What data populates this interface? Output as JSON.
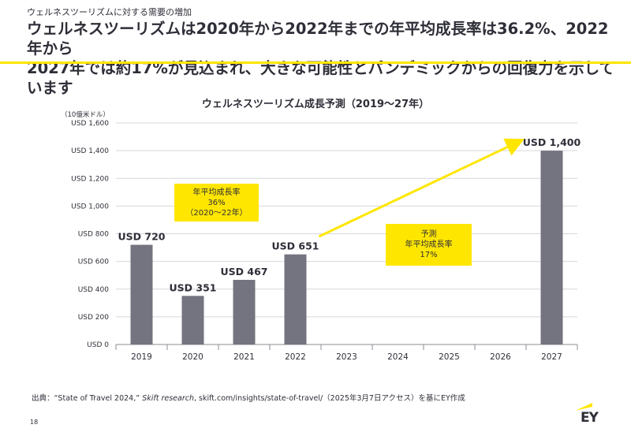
{
  "header": {
    "topic": "ウェルネスツーリズムに対する需要の増加",
    "headline_line1": "ウェルネスツーリズムは2020年から2022年までの年平均成長率は36.2%、2022年から",
    "headline_line2": "2027年では約17%が見込まれ、大きな可能性とパンデミックからの回復力を示しています"
  },
  "colors": {
    "accent": "#ffe600",
    "bar": "#747480",
    "text": "#2e2e38",
    "grid": "#d7d7dc"
  },
  "chart_data": {
    "type": "bar",
    "title": "ウェルネスツーリズム成長予測（2019～27年）",
    "unit_label": "（10億米ドル）",
    "categories": [
      "2019",
      "2020",
      "2021",
      "2022",
      "2023",
      "2024",
      "2025",
      "2026",
      "2027"
    ],
    "values": [
      720,
      351,
      467,
      651,
      null,
      null,
      null,
      null,
      1400
    ],
    "data_labels": [
      "USD 720",
      "USD 351",
      "USD 467",
      "USD 651",
      "",
      "",
      "",
      "",
      "USD 1,400"
    ],
    "ylim": [
      0,
      1600
    ],
    "yticks": [
      0,
      200,
      400,
      600,
      800,
      1000,
      1200,
      1400,
      1600
    ],
    "ytick_labels": [
      "USD 0",
      "USD 200",
      "USD 400",
      "USD 600",
      "USD 800",
      "USD 1,000",
      "USD 1,200",
      "USD 1,400",
      "USD 1,600"
    ],
    "grid": true,
    "trend_arrow": {
      "from_category": "2022",
      "from_value": 780,
      "to_category": "2027",
      "to_value": 1470
    }
  },
  "callouts": {
    "cagr_actual": [
      "年平均成長率",
      "36%",
      "（2020～22年）"
    ],
    "cagr_forecast": [
      "予測",
      "年平均成長率",
      "17%"
    ]
  },
  "footer": {
    "source_prefix": "出典：",
    "source_title": "“State of Travel 2024,” ",
    "source_publisher": "Skift research",
    "source_rest": ", skift.com/insights/state-of-travel/（2025年3月7日アクセス）を基にEY作成",
    "page_number": "18",
    "logo": "EY"
  }
}
